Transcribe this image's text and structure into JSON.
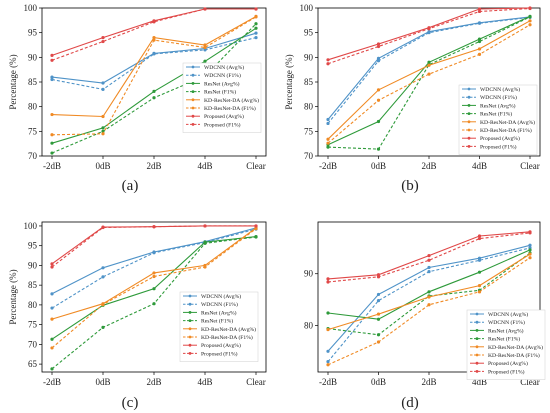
{
  "figure": {
    "panels": [
      {
        "caption": "(a)"
      },
      {
        "caption": "(b)"
      },
      {
        "caption": "(c)"
      },
      {
        "caption": "(d)"
      }
    ]
  },
  "chart_data": [
    {
      "type": "line",
      "caption": "(a)",
      "categories": [
        "-2dB",
        "0dB",
        "2dB",
        "4dB",
        "Clear"
      ],
      "ylabel": "Percentage (%)",
      "ylim": [
        70,
        100
      ],
      "yticks": [
        70,
        75,
        80,
        85,
        90,
        95,
        100
      ],
      "grid": false,
      "legend_position": "right-center",
      "series": [
        {
          "name": "WDCNN (Avg%)",
          "color": "#4f93c8",
          "style": "solid",
          "values": [
            86.0,
            84.8,
            90.8,
            91.8,
            94.9
          ]
        },
        {
          "name": "WDCNN (F1%)",
          "color": "#4f93c8",
          "style": "dashed",
          "values": [
            85.5,
            83.5,
            90.7,
            91.5,
            94.0
          ]
        },
        {
          "name": "ResNet (Avg%)",
          "color": "#2e9a3a",
          "style": "solid",
          "values": [
            72.6,
            75.7,
            83.1,
            89.2,
            95.9
          ]
        },
        {
          "name": "ResNet (F1%)",
          "color": "#2e9a3a",
          "style": "dashed",
          "values": [
            70.6,
            75.0,
            81.8,
            86.2,
            96.8
          ]
        },
        {
          "name": "KD-ResNet-DA (Avg%)",
          "color": "#f08a24",
          "style": "solid",
          "values": [
            78.4,
            78.0,
            94.0,
            92.5,
            98.3
          ]
        },
        {
          "name": "KD-ResNet-DA (F1%)",
          "color": "#f08a24",
          "style": "dashed",
          "values": [
            74.3,
            74.5,
            93.5,
            92.0,
            98.2
          ]
        },
        {
          "name": "Proposed (Avg%)",
          "color": "#e04848",
          "style": "solid",
          "values": [
            90.4,
            94.0,
            97.4,
            99.8,
            99.8
          ]
        },
        {
          "name": "Proposed (F1%)",
          "color": "#e04848",
          "style": "dashed",
          "values": [
            89.4,
            93.2,
            97.2,
            99.8,
            99.8
          ]
        }
      ]
    },
    {
      "type": "line",
      "caption": "(b)",
      "categories": [
        "-2dB",
        "0dB",
        "2dB",
        "4dB",
        "Clear"
      ],
      "ylabel": "Percentage (%)",
      "ylim": [
        70,
        100
      ],
      "yticks": [
        70,
        75,
        80,
        85,
        90,
        95,
        100
      ],
      "grid": false,
      "legend_position": "right-bottom",
      "series": [
        {
          "name": "WDCNN (Avg%)",
          "color": "#4f93c8",
          "style": "solid",
          "values": [
            77.4,
            89.8,
            95.2,
            97.0,
            98.2
          ]
        },
        {
          "name": "WDCNN (F1%)",
          "color": "#4f93c8",
          "style": "dashed",
          "values": [
            76.6,
            89.3,
            95.0,
            96.9,
            98.1
          ]
        },
        {
          "name": "ResNet (Avg%)",
          "color": "#2e9a3a",
          "style": "solid",
          "values": [
            72.3,
            77.0,
            89.0,
            93.7,
            98.3
          ]
        },
        {
          "name": "ResNet (F1%)",
          "color": "#2e9a3a",
          "style": "dashed",
          "values": [
            71.8,
            71.4,
            88.5,
            93.2,
            98.2
          ]
        },
        {
          "name": "KD-ResNet-DA (Avg%)",
          "color": "#f08a24",
          "style": "solid",
          "values": [
            73.4,
            83.4,
            88.4,
            91.7,
            97.4
          ]
        },
        {
          "name": "KD-ResNet-DA (F1%)",
          "color": "#f08a24",
          "style": "dashed",
          "values": [
            72.6,
            81.3,
            86.6,
            90.6,
            96.6
          ]
        },
        {
          "name": "Proposed (Avg%)",
          "color": "#e04848",
          "style": "solid",
          "values": [
            89.5,
            92.7,
            96.0,
            99.8,
            100.0
          ]
        },
        {
          "name": "Proposed (F1%)",
          "color": "#e04848",
          "style": "dashed",
          "values": [
            88.7,
            92.2,
            95.8,
            99.3,
            99.9
          ]
        }
      ]
    },
    {
      "type": "line",
      "caption": "(c)",
      "categories": [
        "-2dB",
        "0dB",
        "2dB",
        "4dB",
        "Clear"
      ],
      "ylabel": "Percentage (%)",
      "ylim": [
        63,
        101
      ],
      "yticks": [
        65,
        70,
        75,
        80,
        85,
        90,
        95,
        100
      ],
      "grid": false,
      "legend_position": "right-bottom",
      "series": [
        {
          "name": "WDCNN (Avg%)",
          "color": "#4f93c8",
          "style": "solid",
          "values": [
            82.8,
            89.4,
            93.4,
            96.0,
            99.5
          ]
        },
        {
          "name": "WDCNN (F1%)",
          "color": "#4f93c8",
          "style": "dashed",
          "values": [
            79.2,
            87.1,
            93.2,
            95.8,
            99.2
          ]
        },
        {
          "name": "ResNet (Avg%)",
          "color": "#2e9a3a",
          "style": "solid",
          "values": [
            71.3,
            79.9,
            84.1,
            95.9,
            97.3
          ]
        },
        {
          "name": "ResNet (F1%)",
          "color": "#2e9a3a",
          "style": "dashed",
          "values": [
            63.8,
            74.3,
            80.3,
            95.6,
            97.2
          ]
        },
        {
          "name": "KD-ResNet-DA (Avg%)",
          "color": "#f08a24",
          "style": "solid",
          "values": [
            76.4,
            80.3,
            88.1,
            90.0,
            99.5
          ]
        },
        {
          "name": "KD-ResNet-DA (F1%)",
          "color": "#f08a24",
          "style": "dashed",
          "values": [
            69.1,
            80.1,
            87.2,
            89.6,
            99.3
          ]
        },
        {
          "name": "Proposed (Avg%)",
          "color": "#e04848",
          "style": "solid",
          "values": [
            90.4,
            99.7,
            99.8,
            100.0,
            100.0
          ]
        },
        {
          "name": "Proposed (F1%)",
          "color": "#e04848",
          "style": "dashed",
          "values": [
            89.6,
            99.6,
            99.8,
            100.0,
            100.0
          ]
        }
      ]
    },
    {
      "type": "line",
      "caption": "(d)",
      "categories": [
        "-2dB",
        "0dB",
        "2dB",
        "4dB",
        "Clear"
      ],
      "ylim": [
        71,
        100
      ],
      "yticks": [
        80,
        90
      ],
      "grid": false,
      "legend_position": "right-bottom",
      "series": [
        {
          "name": "WDCNN (Avg%)",
          "color": "#4f93c8",
          "style": "solid",
          "values": [
            75.0,
            86.0,
            91.2,
            93.0,
            95.5
          ]
        },
        {
          "name": "WDCNN (F1%)",
          "color": "#4f93c8",
          "style": "dashed",
          "values": [
            73.0,
            84.8,
            90.4,
            92.6,
            95.0
          ]
        },
        {
          "name": "ResNet (Avg%)",
          "color": "#2e9a3a",
          "style": "solid",
          "values": [
            82.4,
            81.2,
            86.5,
            90.3,
            94.6
          ]
        },
        {
          "name": "ResNet (F1%)",
          "color": "#2e9a3a",
          "style": "dashed",
          "values": [
            79.4,
            78.2,
            85.7,
            86.8,
            94.0
          ]
        },
        {
          "name": "KD-ResNet-DA (Avg%)",
          "color": "#f08a24",
          "style": "solid",
          "values": [
            79.2,
            82.2,
            85.5,
            87.7,
            93.8
          ]
        },
        {
          "name": "KD-ResNet-DA (F1%)",
          "color": "#f08a24",
          "style": "dashed",
          "values": [
            72.4,
            76.8,
            84.0,
            86.5,
            93.1
          ]
        },
        {
          "name": "Proposed (Avg%)",
          "color": "#e04848",
          "style": "solid",
          "values": [
            89.0,
            89.8,
            93.5,
            97.3,
            98.1
          ]
        },
        {
          "name": "Proposed (F1%)",
          "color": "#e04848",
          "style": "dashed",
          "values": [
            88.4,
            89.4,
            92.6,
            96.8,
            97.9
          ]
        }
      ]
    }
  ]
}
